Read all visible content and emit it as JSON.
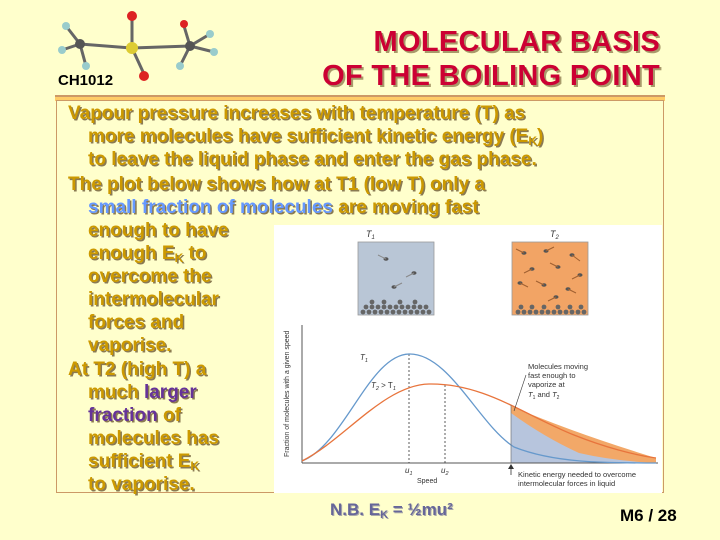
{
  "header": {
    "title_line1": "MOLECULAR BASIS",
    "title_line2": "OF THE BOILING POINT",
    "course_code": "CH1012"
  },
  "body": {
    "p1_l1": "Vapour pressure increases with temperature (T) as",
    "p1_l2a": "more molecules have sufficient kinetic energy (E",
    "p1_l2_sub": "K",
    "p1_l2b": ")",
    "p1_l3": "to leave the liquid phase and enter the gas phase.",
    "p2_l1": "The plot below shows how at T1 (low T) only a",
    "p2_l2_highlight": "small fraction of molecules",
    "p2_l2_rest": " are moving fast",
    "p2_l3": "enough to have",
    "p2_l4a": "enough E",
    "p2_l4_sub": "K",
    "p2_l4b": " to",
    "p2_l5": "overcome the",
    "p2_l6": "intermolecular",
    "p2_l7": "forces and",
    "p2_l8": "vaporise.",
    "p3_l1": "At T2 (high T) a",
    "p3_l2a": "much ",
    "p3_l2_highlight": "larger",
    "p3_l3_highlight": "fraction",
    "p3_l3_rest": " of",
    "p3_l4": "molecules has",
    "p3_l5a": "sufficient E",
    "p3_l5_sub": "K",
    "p3_l6": "to vaporise."
  },
  "figure": {
    "box1_label": "T",
    "box1_sub": "1",
    "box2_label": "T",
    "box2_sub": "2",
    "y_axis_label": "Fraction of molecules with a given speed",
    "x_axis_label": "Speed",
    "curve_t1_label": "T",
    "curve_t1_sub": "1",
    "curve_t2_label": "T",
    "curve_t2_sub": "2",
    "curve_t2_suffix": " > T",
    "curve_t2_suffix_sub": "1",
    "u1_label": "u",
    "u1_sub": "1",
    "u2_label": "u",
    "u2_sub": "2",
    "annotation_lines": [
      "Molecules moving",
      "fast enough to",
      "vaporize at"
    ],
    "annotation_last_a": "T",
    "annotation_last_a_sub": "1",
    "annotation_last_and": " and ",
    "annotation_last_b": "T",
    "annotation_last_b_sub": "2",
    "ke_note_line1": "Kinetic energy needed to overcome",
    "ke_note_line2": "intermolecular forces in liquid",
    "colors": {
      "t1_curve": "#6699cc",
      "t2_curve": "#e8743c",
      "fill_t2": "#f2a868",
      "fill_t1": "#b7c5dd",
      "box1_bg": "#b9c6d6",
      "box2_bg": "#f2a465"
    }
  },
  "footer": {
    "nb_a": "N.B.   E",
    "nb_sub": "K",
    "nb_b": " = ½mu²",
    "slide_number": "M6   /   28"
  },
  "decor": {
    "molecule_icon": "ball-and-stick-molecule-icon"
  }
}
